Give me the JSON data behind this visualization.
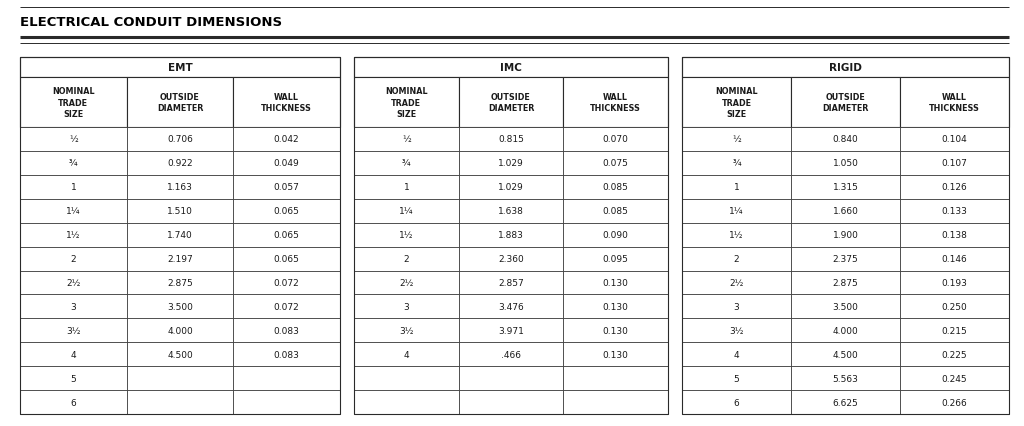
{
  "title": "ELECTRICAL CONDUIT DIMENSIONS",
  "sections": [
    "EMT",
    "IMC",
    "RIGID"
  ],
  "headers": [
    "NOMINAL\nTRADE\nSIZE",
    "OUTSIDE\nDIAMETER",
    "WALL\nTHICKNESS"
  ],
  "emt_data": [
    [
      "½",
      "0.706",
      "0.042"
    ],
    [
      "¾",
      "0.922",
      "0.049"
    ],
    [
      "1",
      "1.163",
      "0.057"
    ],
    [
      "1¼",
      "1.510",
      "0.065"
    ],
    [
      "1½",
      "1.740",
      "0.065"
    ],
    [
      "2",
      "2.197",
      "0.065"
    ],
    [
      "2½",
      "2.875",
      "0.072"
    ],
    [
      "3",
      "3.500",
      "0.072"
    ],
    [
      "3½",
      "4.000",
      "0.083"
    ],
    [
      "4",
      "4.500",
      "0.083"
    ],
    [
      "5",
      "",
      ""
    ],
    [
      "6",
      "",
      ""
    ]
  ],
  "imc_data": [
    [
      "½",
      "0.815",
      "0.070"
    ],
    [
      "¾",
      "1.029",
      "0.075"
    ],
    [
      "1",
      "1.029",
      "0.085"
    ],
    [
      "1¼",
      "1.638",
      "0.085"
    ],
    [
      "1½",
      "1.883",
      "0.090"
    ],
    [
      "2",
      "2.360",
      "0.095"
    ],
    [
      "2½",
      "2.857",
      "0.130"
    ],
    [
      "3",
      "3.476",
      "0.130"
    ],
    [
      "3½",
      "3.971",
      "0.130"
    ],
    [
      "4",
      ".466",
      "0.130"
    ],
    [
      "",
      "",
      ""
    ],
    [
      "",
      "",
      ""
    ]
  ],
  "rigid_data": [
    [
      "½",
      "0.840",
      "0.104"
    ],
    [
      "¾",
      "1.050",
      "0.107"
    ],
    [
      "1",
      "1.315",
      "0.126"
    ],
    [
      "1¼",
      "1.660",
      "0.133"
    ],
    [
      "1½",
      "1.900",
      "0.138"
    ],
    [
      "2",
      "2.375",
      "0.146"
    ],
    [
      "2½",
      "2.875",
      "0.193"
    ],
    [
      "3",
      "3.500",
      "0.250"
    ],
    [
      "3½",
      "4.000",
      "0.215"
    ],
    [
      "4",
      "4.500",
      "0.225"
    ],
    [
      "5",
      "5.563",
      "0.245"
    ],
    [
      "6",
      "6.625",
      "0.266"
    ]
  ],
  "line_color": "#2a2a2a",
  "text_color": "#1a1a1a",
  "title_color": "#000000",
  "fig_width": 10.24,
  "fig_height": 4.27,
  "dpi": 100
}
